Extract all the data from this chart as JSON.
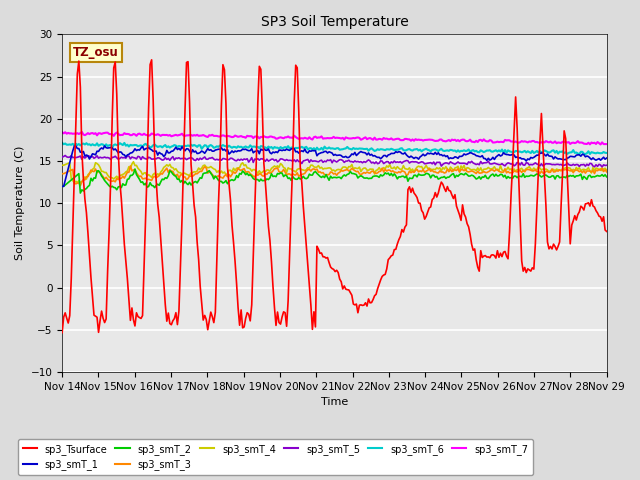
{
  "title": "SP3 Soil Temperature",
  "xlabel": "Time",
  "ylabel": "Soil Temperature (C)",
  "ylim": [
    -10,
    30
  ],
  "xlim": [
    0,
    15
  ],
  "x_tick_labels": [
    "Nov 14",
    "Nov 15",
    "Nov 16",
    "Nov 17",
    "Nov 18",
    "Nov 19",
    "Nov 20",
    "Nov 21",
    "Nov 22",
    "Nov 23",
    "Nov 24",
    "Nov 25",
    "Nov 26",
    "Nov 27",
    "Nov 28",
    "Nov 29"
  ],
  "fig_bg_color": "#dcdcdc",
  "ax_bg_color": "#e8e8e8",
  "annotation_text": "TZ_osu",
  "annotation_color": "#8b0000",
  "annotation_bg": "#ffffcc",
  "annotation_edge": "#b8860b",
  "series_colors": {
    "sp3_Tsurface": "#ff0000",
    "sp3_smT_1": "#0000cc",
    "sp3_smT_2": "#00cc00",
    "sp3_smT_3": "#ff8800",
    "sp3_smT_4": "#cccc00",
    "sp3_smT_5": "#8800cc",
    "sp3_smT_6": "#00cccc",
    "sp3_smT_7": "#ff00ff"
  }
}
